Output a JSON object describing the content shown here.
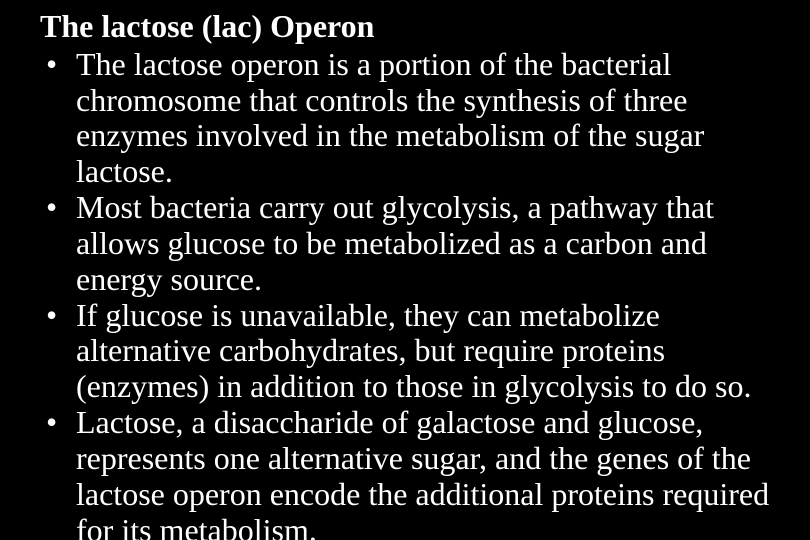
{
  "slide": {
    "background_color": "#000000",
    "text_color": "#ffffff",
    "font_family": "Times New Roman",
    "title": "The lactose (lac) Operon",
    "title_fontsize": 32,
    "title_fontweight": "bold",
    "bullet_fontsize": 32,
    "bullets": [
      "The lactose operon is a portion of the bacterial chromosome that controls the synthesis of three enzymes involved in the metabolism of the sugar lactose.",
      "Most bacteria carry out glycolysis, a pathway that allows glucose to be metabolized as a carbon and energy source.",
      "If glucose is unavailable, they can metabolize alternative carbohydrates, but require proteins (enzymes) in addition to those in glycolysis to do so.",
      "Lactose, a disaccharide of galactose and glucose, represents one alternative sugar, and the genes of the lactose operon encode the additional proteins required for its metabolism."
    ]
  }
}
